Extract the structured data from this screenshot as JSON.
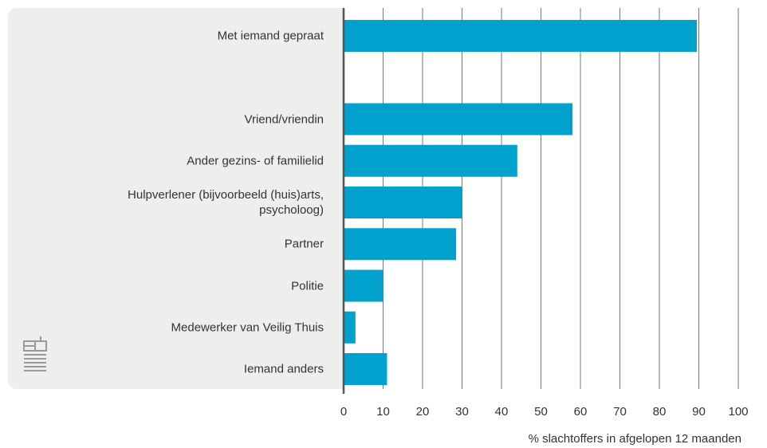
{
  "chart_data": {
    "type": "hbar",
    "categories": [
      "Met iemand gepraat",
      null,
      "Vriend/vriendin",
      "Ander gezins- of familielid",
      "Hulpverlener (bijvoorbeeld (huis)arts,\npsycholoog)",
      "Partner",
      "Politie",
      "Medewerker van Veilig Thuis",
      "Iemand anders"
    ],
    "values": [
      89.5,
      null,
      58,
      44,
      30,
      28.5,
      10,
      3,
      11
    ],
    "color": "#00a1cd",
    "xlabel": "% slachtoffers in afgelopen 12 maanden",
    "xlim": [
      0,
      100
    ],
    "xticks": [
      0,
      10,
      20,
      30,
      40,
      50,
      60,
      70,
      80,
      90,
      100
    ],
    "grid": true
  }
}
